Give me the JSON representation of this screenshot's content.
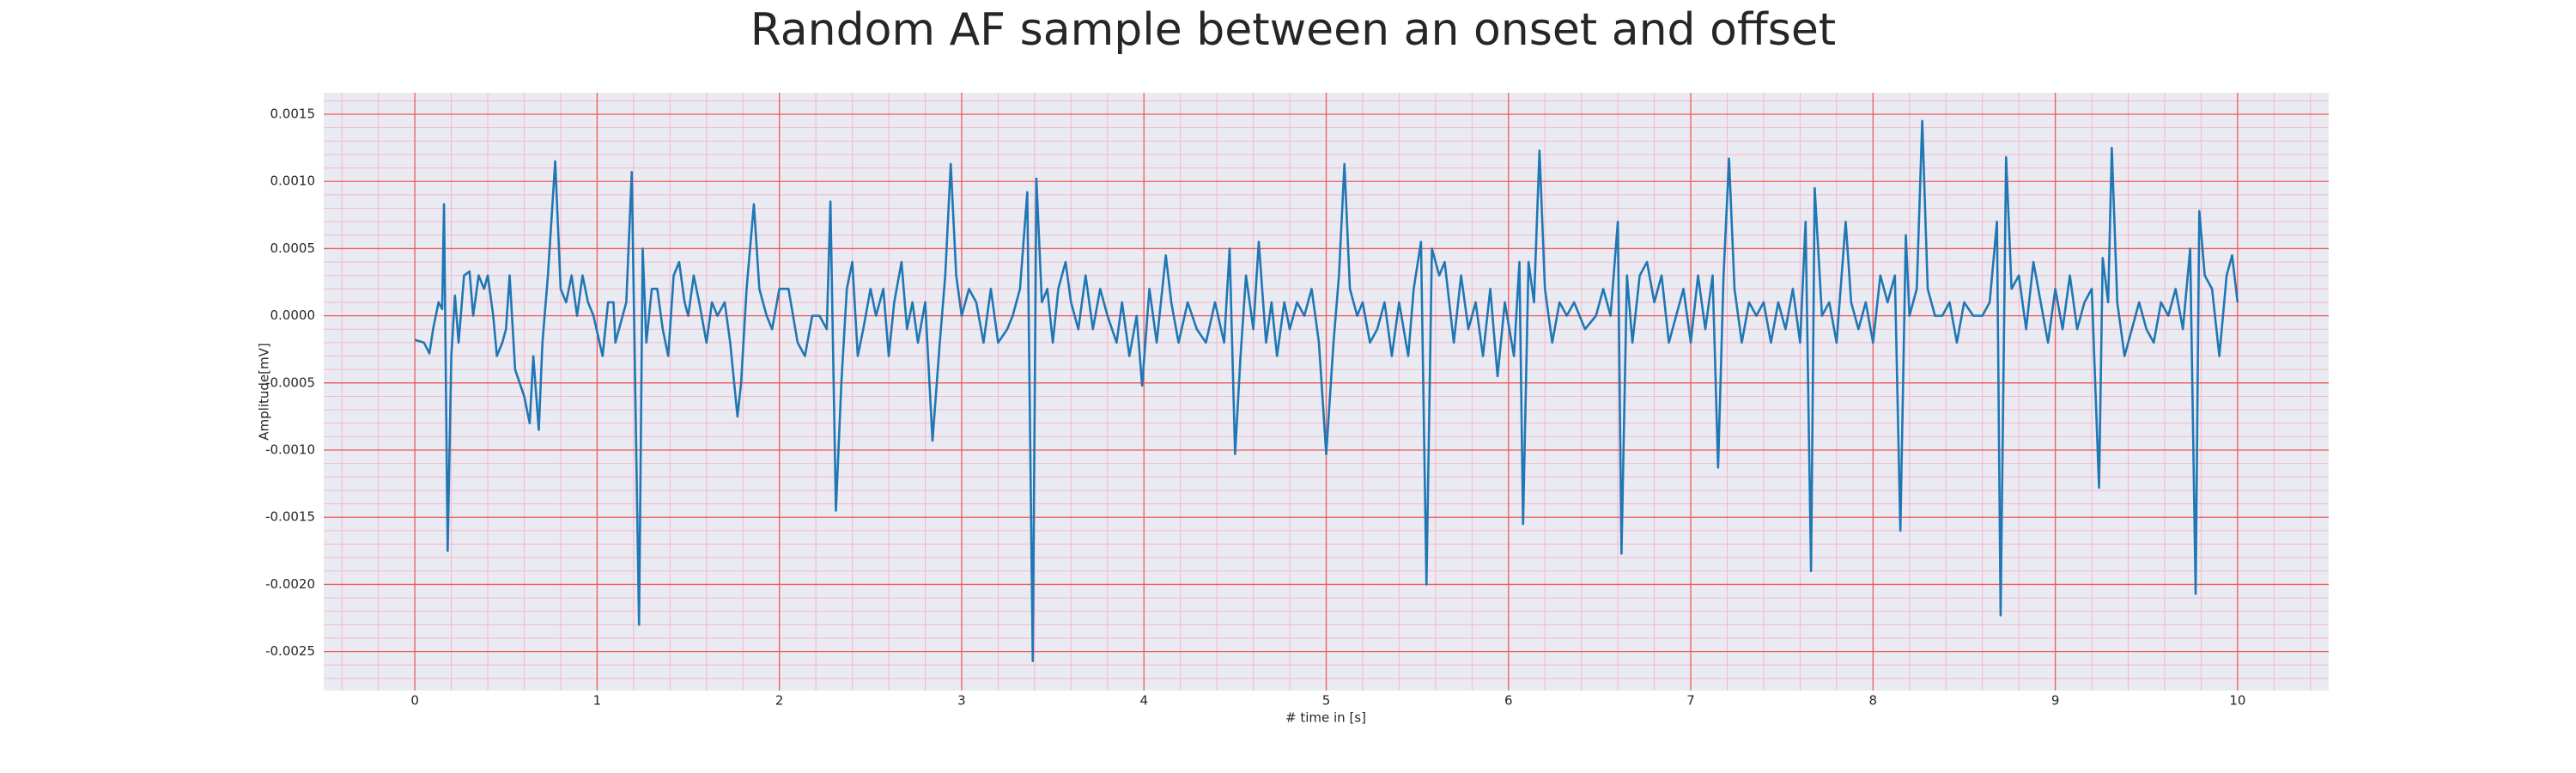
{
  "chart_data": {
    "type": "line",
    "title": "Random AF sample between an onset and offset",
    "xlabel": "# time in [s]",
    "ylabel": "Amplitude[mV]",
    "color": "#1f77b4",
    "grid": true,
    "minor_grid": true,
    "xlim": [
      -0.5,
      10.5
    ],
    "ylim": [
      -0.00279,
      0.00166
    ],
    "xticks": [
      0,
      1,
      2,
      3,
      4,
      5,
      6,
      7,
      8,
      9,
      10
    ],
    "yticks": [
      0.0015,
      {
        "value": 0.001,
        "label": "0.0010"
      },
      0.0005,
      {
        "value": 0,
        "label": "0.0000"
      },
      -0.0005,
      {
        "value": -0.001,
        "label": "-0.0010"
      },
      -0.0015,
      {
        "value": -0.002,
        "label": "-0.0020"
      },
      -0.0025
    ],
    "x": [
      0,
      0.05,
      0.08,
      0.1,
      0.13,
      0.15,
      0.16,
      0.18,
      0.2,
      0.22,
      0.24,
      0.27,
      0.3,
      0.32,
      0.35,
      0.38,
      0.4,
      0.43,
      0.45,
      0.48,
      0.5,
      0.52,
      0.55,
      0.6,
      0.63,
      0.65,
      0.68,
      0.7,
      0.73,
      0.77,
      0.8,
      0.83,
      0.86,
      0.89,
      0.92,
      0.95,
      0.98,
      1.0,
      1.03,
      1.06,
      1.09,
      1.1,
      1.16,
      1.19,
      1.23,
      1.25,
      1.27,
      1.3,
      1.33,
      1.36,
      1.39,
      1.42,
      1.45,
      1.48,
      1.5,
      1.53,
      1.56,
      1.6,
      1.63,
      1.66,
      1.7,
      1.73,
      1.77,
      1.79,
      1.82,
      1.86,
      1.89,
      1.93,
      1.96,
      2.0,
      2.05,
      2.1,
      2.14,
      2.18,
      2.22,
      2.26,
      2.28,
      2.31,
      2.34,
      2.37,
      2.4,
      2.43,
      2.46,
      2.5,
      2.53,
      2.57,
      2.6,
      2.63,
      2.67,
      2.7,
      2.73,
      2.76,
      2.8,
      2.84,
      2.88,
      2.91,
      2.94,
      2.97,
      3.0,
      3.04,
      3.08,
      3.12,
      3.16,
      3.2,
      3.25,
      3.28,
      3.32,
      3.36,
      3.39,
      3.41,
      3.44,
      3.47,
      3.5,
      3.53,
      3.57,
      3.6,
      3.64,
      3.68,
      3.72,
      3.76,
      3.8,
      3.85,
      3.88,
      3.92,
      3.96,
      3.99,
      4.03,
      4.07,
      4.12,
      4.15,
      4.19,
      4.24,
      4.29,
      4.34,
      4.39,
      4.44,
      4.47,
      4.5,
      4.53,
      4.56,
      4.6,
      4.63,
      4.67,
      4.7,
      4.73,
      4.77,
      4.8,
      4.84,
      4.88,
      4.92,
      4.96,
      5.0,
      5.04,
      5.07,
      5.1,
      5.13,
      5.17,
      5.2,
      5.24,
      5.28,
      5.32,
      5.36,
      5.4,
      5.45,
      5.48,
      5.52,
      5.55,
      5.58,
      5.62,
      5.65,
      5.7,
      5.74,
      5.78,
      5.82,
      5.86,
      5.9,
      5.94,
      5.98,
      6.03,
      6.06,
      6.08,
      6.11,
      6.14,
      6.17,
      6.2,
      6.24,
      6.28,
      6.32,
      6.36,
      6.42,
      6.48,
      6.52,
      6.56,
      6.6,
      6.62,
      6.65,
      6.68,
      6.72,
      6.76,
      6.8,
      6.84,
      6.88,
      6.92,
      6.96,
      7.0,
      7.04,
      7.08,
      7.12,
      7.15,
      7.18,
      7.21,
      7.24,
      7.28,
      7.32,
      7.36,
      7.4,
      7.44,
      7.48,
      7.52,
      7.56,
      7.6,
      7.63,
      7.66,
      7.68,
      7.72,
      7.76,
      7.8,
      7.85,
      7.88,
      7.92,
      7.96,
      8.0,
      8.04,
      8.08,
      8.12,
      8.15,
      8.18,
      8.2,
      8.24,
      8.27,
      8.3,
      8.34,
      8.38,
      8.42,
      8.46,
      8.5,
      8.55,
      8.6,
      8.64,
      8.68,
      8.7,
      8.73,
      8.76,
      8.8,
      8.84,
      8.88,
      8.92,
      8.96,
      9.0,
      9.04,
      9.08,
      9.12,
      9.16,
      9.2,
      9.24,
      9.26,
      9.29,
      9.31,
      9.34,
      9.38,
      9.42,
      9.46,
      9.5,
      9.54,
      9.58,
      9.62,
      9.66,
      9.7,
      9.74,
      9.77,
      9.79,
      9.82,
      9.86,
      9.9,
      9.94,
      9.97,
      10.0
    ],
    "values": [
      -0.00018,
      -0.0002,
      -0.00028,
      -0.0001,
      0.0001,
      5e-05,
      0.00083,
      -0.00175,
      -0.0003,
      0.00015,
      -0.0002,
      0.0003,
      0.00033,
      0,
      0.0003,
      0.0002,
      0.0003,
      0,
      -0.0003,
      -0.0002,
      -0.0001,
      0.0003,
      -0.0004,
      -0.0006,
      -0.0008,
      -0.0003,
      -0.00085,
      -0.0002,
      0.0003,
      0.00115,
      0.0002,
      0.0001,
      0.0003,
      0,
      0.0003,
      0.0001,
      0,
      -0.00012,
      -0.0003,
      0.0001,
      0.0001,
      -0.0002,
      0.0001,
      0.00107,
      -0.0023,
      0.0005,
      -0.0002,
      0.0002,
      0.0002,
      -0.0001,
      -0.0003,
      0.0003,
      0.0004,
      0.0001,
      0,
      0.0003,
      0.0001,
      -0.0002,
      0.0001,
      0,
      0.0001,
      -0.0002,
      -0.00075,
      -0.0005,
      0.0002,
      0.00083,
      0.0002,
      0,
      -0.0001,
      0.0002,
      0.0002,
      -0.0002,
      -0.0003,
      0,
      0,
      -0.0001,
      0.00085,
      -0.00145,
      -0.0005,
      0.0002,
      0.0004,
      -0.0003,
      -0.0001,
      0.0002,
      0,
      0.0002,
      -0.0003,
      0.0001,
      0.0004,
      -0.0001,
      0.0001,
      -0.0002,
      0.0001,
      -0.00093,
      -0.0002,
      0.0003,
      0.00113,
      0.0003,
      0,
      0.0002,
      0.0001,
      -0.0002,
      0.0002,
      -0.0002,
      -0.0001,
      0,
      0.0002,
      0.00092,
      -0.00257,
      0.00102,
      0.0001,
      0.0002,
      -0.0002,
      0.0002,
      0.0004,
      0.0001,
      -0.0001,
      0.0003,
      -0.0001,
      0.0002,
      0,
      -0.0002,
      0.0001,
      -0.0003,
      0,
      -0.00052,
      0.0002,
      -0.0002,
      0.00045,
      0.0001,
      -0.0002,
      0.0001,
      -0.0001,
      -0.0002,
      0.0001,
      -0.0002,
      0.0005,
      -0.00103,
      -0.0003,
      0.0003,
      -0.0001,
      0.00055,
      -0.0002,
      0.0001,
      -0.0003,
      0.0001,
      -0.0001,
      0.0001,
      0,
      0.0002,
      -0.0002,
      -0.00103,
      -0.0002,
      0.0003,
      0.00113,
      0.0002,
      0,
      0.0001,
      -0.0002,
      -0.0001,
      0.0001,
      -0.0003,
      0.0001,
      -0.0003,
      0.0002,
      0.00055,
      -0.002,
      0.0005,
      0.0003,
      0.0004,
      -0.0002,
      0.0003,
      -0.0001,
      0.0001,
      -0.0003,
      0.0002,
      -0.00045,
      0.0001,
      -0.0003,
      0.0004,
      -0.00155,
      0.0004,
      0.0001,
      0.00123,
      0.0002,
      -0.0002,
      0.0001,
      0,
      0.0001,
      -0.0001,
      0,
      0.0002,
      0,
      0.0007,
      -0.00177,
      0.0003,
      -0.0002,
      0.0003,
      0.0004,
      0.0001,
      0.0003,
      -0.0002,
      0,
      0.0002,
      -0.0002,
      0.0003,
      -0.0001,
      0.0003,
      -0.00113,
      0.0003,
      0.00117,
      0.0002,
      -0.0002,
      0.0001,
      0,
      0.0001,
      -0.0002,
      0.0001,
      -0.0001,
      0.0002,
      -0.0002,
      0.0007,
      -0.0019,
      0.00095,
      0,
      0.0001,
      -0.0002,
      0.0007,
      0.0001,
      -0.0001,
      0.0001,
      -0.0002,
      0.0003,
      0.0001,
      0.0003,
      -0.0016,
      0.0006,
      0,
      0.0002,
      0.00145,
      0.0002,
      0,
      0,
      0.0001,
      -0.0002,
      0.0001,
      0,
      0,
      0.0001,
      0.0007,
      -0.00223,
      0.00118,
      0.0002,
      0.0003,
      -0.0001,
      0.0004,
      0.0001,
      -0.0002,
      0.0002,
      -0.0001,
      0.0003,
      -0.0001,
      0.0001,
      0.0002,
      -0.00128,
      0.00043,
      0.0001,
      0.00125,
      0.0001,
      -0.0003,
      -0.0001,
      0.0001,
      -0.0001,
      -0.0002,
      0.0001,
      0,
      0.0002,
      -0.0001,
      0.0005,
      -0.00207,
      0.00078,
      0.0003,
      0.0002,
      -0.0003,
      0.0003,
      0.00045,
      0.0001
    ]
  }
}
